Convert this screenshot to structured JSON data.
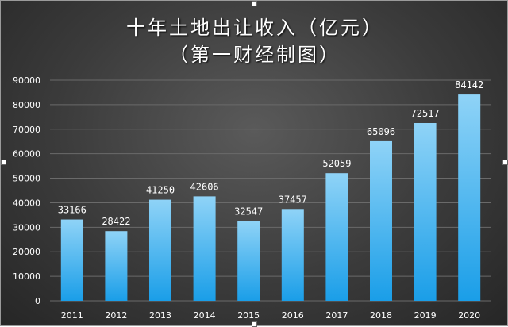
{
  "chart_data": {
    "type": "bar",
    "title": "十年土地出让收入（亿元）",
    "subtitle": "（第一财经制图）",
    "categories": [
      "2011",
      "2012",
      "2013",
      "2014",
      "2015",
      "2016",
      "2017",
      "2018",
      "2019",
      "2020"
    ],
    "values": [
      33166,
      28422,
      41250,
      42606,
      32547,
      37457,
      52059,
      65096,
      72517,
      84142
    ],
    "y_ticks": [
      "0",
      "10000",
      "20000",
      "30000",
      "40000",
      "50000",
      "60000",
      "70000",
      "80000",
      "90000"
    ],
    "ylim": [
      0,
      90000
    ],
    "grid": true,
    "legend": "none",
    "colors": {
      "bar_top": "#8fd3f7",
      "bar_bottom": "#1a9ee8",
      "text": "#ffffff",
      "grid": "#6a6a6a",
      "background": "#3b3b3b"
    }
  }
}
